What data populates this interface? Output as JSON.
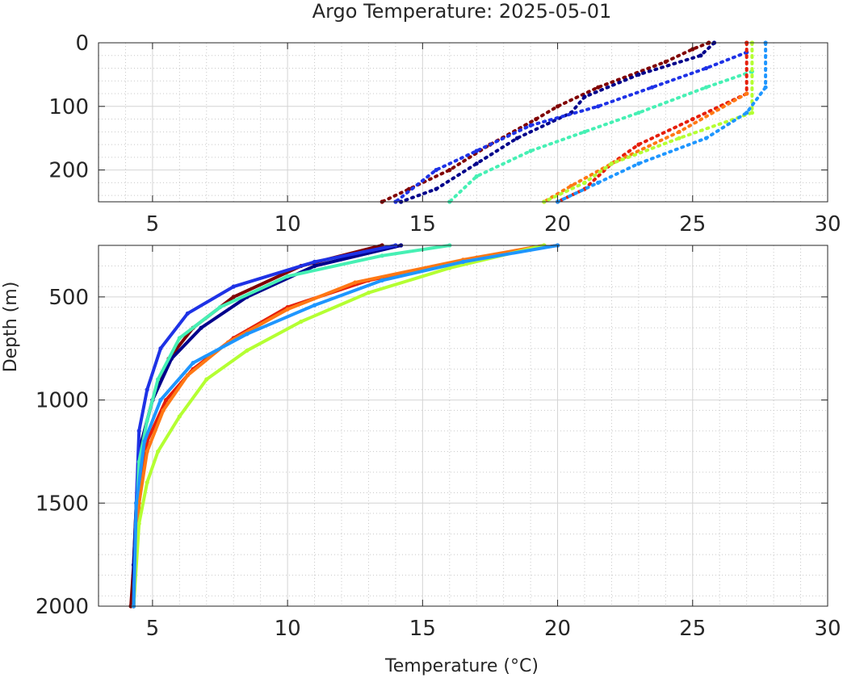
{
  "chart_data": {
    "type": "scatter",
    "title": "Argo Temperature: 2025-05-01",
    "xlabel": "Temperature (°C)",
    "ylabel": "Depth (m)",
    "panels": [
      {
        "name": "upper",
        "xlim": [
          3,
          30
        ],
        "ylim": [
          0,
          250
        ],
        "y_reversed": true,
        "xticks": [
          5,
          10,
          15,
          20,
          25,
          30
        ],
        "yticks": [
          0,
          100,
          200
        ],
        "grid": "major+minor"
      },
      {
        "name": "lower",
        "xlim": [
          3,
          30
        ],
        "ylim": [
          250,
          2000
        ],
        "y_reversed": true,
        "xticks": [
          5,
          10,
          15,
          20,
          25,
          30
        ],
        "yticks": [
          500,
          1000,
          1500,
          2000
        ],
        "grid": "major+minor"
      }
    ],
    "series": [
      {
        "color": "#800000",
        "upper": [
          [
            25.6,
            0
          ],
          [
            25.0,
            10
          ],
          [
            24.0,
            30
          ],
          [
            21.5,
            70
          ],
          [
            20.0,
            100
          ],
          [
            19.2,
            120
          ],
          [
            17.5,
            160
          ],
          [
            16.0,
            200
          ],
          [
            14.5,
            230
          ],
          [
            13.5,
            250
          ]
        ],
        "lower": [
          [
            13.5,
            250
          ],
          [
            10.5,
            350
          ],
          [
            8.0,
            500
          ],
          [
            6.5,
            650
          ],
          [
            5.6,
            800
          ],
          [
            5.0,
            1000
          ],
          [
            4.6,
            1200
          ],
          [
            4.4,
            1500
          ],
          [
            4.3,
            1800
          ],
          [
            4.2,
            2000
          ]
        ]
      },
      {
        "color": "#00008b",
        "upper": [
          [
            25.8,
            0
          ],
          [
            25.3,
            20
          ],
          [
            23.0,
            50
          ],
          [
            21.0,
            85
          ],
          [
            20.5,
            110
          ],
          [
            18.5,
            150
          ],
          [
            17.0,
            190
          ],
          [
            15.5,
            230
          ],
          [
            14.2,
            250
          ]
        ],
        "lower": [
          [
            14.2,
            250
          ],
          [
            11.0,
            350
          ],
          [
            8.5,
            500
          ],
          [
            6.8,
            650
          ],
          [
            5.7,
            800
          ],
          [
            5.0,
            1000
          ],
          [
            4.6,
            1200
          ],
          [
            4.4,
            1500
          ],
          [
            4.3,
            1800
          ],
          [
            4.3,
            2000
          ]
        ]
      },
      {
        "color": "#1e32e6",
        "upper": [
          [
            27.0,
            15
          ],
          [
            25.5,
            40
          ],
          [
            23.5,
            70
          ],
          [
            21.5,
            100
          ],
          [
            19.0,
            130
          ],
          [
            17.0,
            170
          ],
          [
            15.5,
            200
          ],
          [
            14.0,
            250
          ]
        ],
        "lower": [
          [
            14.0,
            250
          ],
          [
            11.0,
            330
          ],
          [
            8.0,
            450
          ],
          [
            6.3,
            580
          ],
          [
            5.3,
            750
          ],
          [
            4.8,
            950
          ],
          [
            4.5,
            1150
          ],
          [
            4.4,
            1500
          ],
          [
            4.3,
            2000
          ]
        ]
      },
      {
        "color": "#46f0b4",
        "upper": [
          [
            27.2,
            45
          ],
          [
            25.5,
            70
          ],
          [
            23.0,
            110
          ],
          [
            21.0,
            140
          ],
          [
            19.0,
            170
          ],
          [
            17.0,
            210
          ],
          [
            16.0,
            250
          ]
        ],
        "lower": [
          [
            16.0,
            250
          ],
          [
            13.5,
            300
          ],
          [
            10.0,
            400
          ],
          [
            7.5,
            550
          ],
          [
            6.0,
            700
          ],
          [
            5.2,
            900
          ],
          [
            4.8,
            1100
          ],
          [
            4.5,
            1300
          ],
          [
            4.4,
            1600
          ],
          [
            4.3,
            2000
          ]
        ]
      },
      {
        "color": "#e61e0a",
        "upper": [
          [
            27.0,
            0
          ],
          [
            27.0,
            80
          ],
          [
            25.0,
            120
          ],
          [
            23.0,
            160
          ],
          [
            22.0,
            190
          ],
          [
            21.0,
            230
          ],
          [
            20.0,
            250
          ]
        ],
        "lower": [
          [
            20.0,
            250
          ],
          [
            17.0,
            310
          ],
          [
            13.0,
            420
          ],
          [
            10.0,
            550
          ],
          [
            8.0,
            700
          ],
          [
            6.5,
            850
          ],
          [
            5.5,
            1000
          ],
          [
            4.8,
            1200
          ],
          [
            4.5,
            1500
          ],
          [
            4.3,
            2000
          ]
        ]
      },
      {
        "color": "#ff7814",
        "upper": [
          [
            27.0,
            80
          ],
          [
            24.5,
            140
          ],
          [
            22.0,
            190
          ],
          [
            20.5,
            225
          ],
          [
            19.5,
            250
          ]
        ],
        "lower": [
          [
            19.5,
            250
          ],
          [
            16.5,
            320
          ],
          [
            12.5,
            430
          ],
          [
            10.0,
            560
          ],
          [
            7.8,
            720
          ],
          [
            6.3,
            880
          ],
          [
            5.4,
            1050
          ],
          [
            4.8,
            1250
          ],
          [
            4.5,
            1500
          ],
          [
            4.3,
            2000
          ]
        ]
      },
      {
        "color": "#b4ff32",
        "upper": [
          [
            27.2,
            0
          ],
          [
            27.2,
            110
          ],
          [
            24.5,
            150
          ],
          [
            22.0,
            190
          ],
          [
            21.0,
            220
          ],
          [
            19.5,
            250
          ]
        ],
        "lower": [
          [
            19.5,
            250
          ],
          [
            16.0,
            360
          ],
          [
            13.0,
            480
          ],
          [
            10.5,
            620
          ],
          [
            8.5,
            760
          ],
          [
            7.0,
            900
          ],
          [
            6.0,
            1080
          ],
          [
            5.2,
            1250
          ],
          [
            4.8,
            1400
          ],
          [
            4.5,
            1600
          ],
          [
            4.3,
            2000
          ]
        ]
      },
      {
        "color": "#1e96ff",
        "upper": [
          [
            27.7,
            0
          ],
          [
            27.7,
            70
          ],
          [
            27.0,
            110
          ],
          [
            25.5,
            150
          ],
          [
            23.0,
            190
          ],
          [
            21.5,
            220
          ],
          [
            20.0,
            250
          ]
        ],
        "lower": [
          [
            20.0,
            250
          ],
          [
            16.5,
            330
          ],
          [
            13.5,
            420
          ],
          [
            11.0,
            540
          ],
          [
            8.5,
            680
          ],
          [
            6.5,
            820
          ],
          [
            5.3,
            1000
          ],
          [
            4.7,
            1200
          ],
          [
            4.4,
            1500
          ],
          [
            4.3,
            2000
          ]
        ]
      }
    ]
  }
}
